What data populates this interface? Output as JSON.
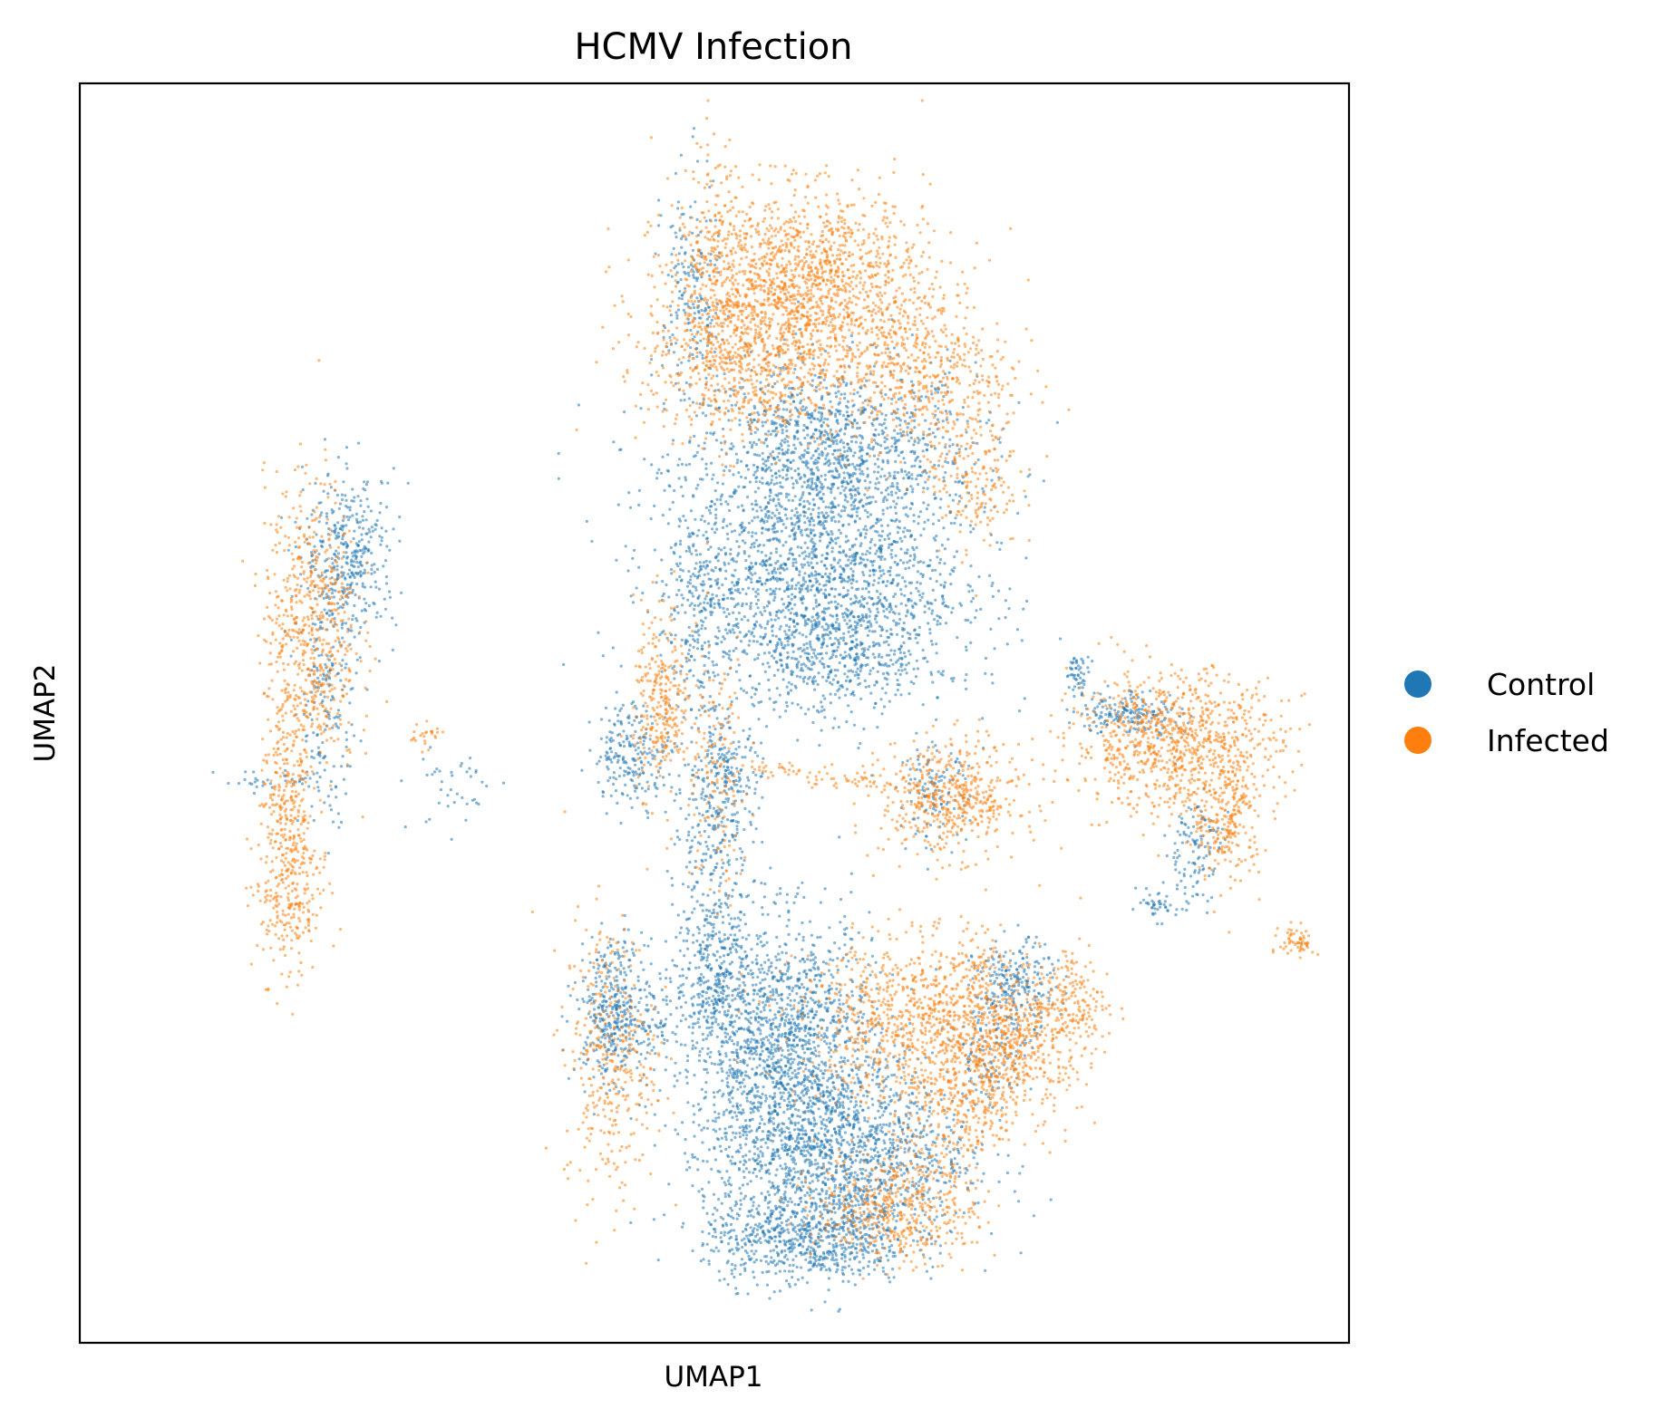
{
  "chart_data": {
    "type": "scatter",
    "title": "HCMV Infection",
    "xlabel": "UMAP1",
    "ylabel": "UMAP2",
    "xlim": [
      -1,
      21
    ],
    "ylim": [
      -1,
      21
    ],
    "grid": false,
    "ticks_shown": false,
    "legend_placement": "right",
    "series": [
      {
        "name": "Control",
        "color": "#1f77b4",
        "clusters": [
          {
            "x": 12.0,
            "y": 14.4,
            "sx": 1.25,
            "sy": 0.85,
            "n": 1400
          },
          {
            "x": 11.7,
            "y": 12.2,
            "sx": 1.3,
            "sy": 0.9,
            "n": 1500
          },
          {
            "x": 12.1,
            "y": 10.9,
            "sx": 1.0,
            "sy": 0.5,
            "n": 400
          },
          {
            "x": 9.6,
            "y": 17.2,
            "sx": 0.25,
            "sy": 1.1,
            "n": 200
          },
          {
            "x": 9.8,
            "y": 11.7,
            "sx": 0.22,
            "sy": 0.9,
            "n": 150
          },
          {
            "x": 8.6,
            "y": 9.3,
            "sx": 0.35,
            "sy": 0.45,
            "n": 220
          },
          {
            "x": 10.0,
            "y": 8.0,
            "sx": 0.35,
            "sy": 0.9,
            "n": 250
          },
          {
            "x": 10.2,
            "y": 9.0,
            "sx": 0.3,
            "sy": 0.4,
            "n": 120
          },
          {
            "x": 10.0,
            "y": 5.4,
            "sx": 0.35,
            "sy": 0.8,
            "n": 350
          },
          {
            "x": 11.2,
            "y": 4.2,
            "sx": 0.8,
            "sy": 1.1,
            "n": 1500
          },
          {
            "x": 12.2,
            "y": 2.3,
            "sx": 1.1,
            "sy": 0.8,
            "n": 1400
          },
          {
            "x": 11.6,
            "y": 0.8,
            "sx": 0.9,
            "sy": 0.4,
            "n": 700
          },
          {
            "x": 8.2,
            "y": 4.8,
            "sx": 0.3,
            "sy": 0.6,
            "n": 320
          },
          {
            "x": 8.7,
            "y": 4.6,
            "sx": 0.35,
            "sy": 0.6,
            "n": 120
          },
          {
            "x": 15.2,
            "y": 5.2,
            "sx": 0.35,
            "sy": 0.4,
            "n": 250
          },
          {
            "x": 14.8,
            "y": 4.0,
            "sx": 0.3,
            "sy": 0.4,
            "n": 100
          },
          {
            "x": 16.3,
            "y": 10.7,
            "sx": 0.1,
            "sy": 0.15,
            "n": 50
          },
          {
            "x": 17.2,
            "y": 10.0,
            "sx": 0.45,
            "sy": 0.2,
            "n": 180
          },
          {
            "x": 18.3,
            "y": 7.6,
            "sx": 0.25,
            "sy": 0.5,
            "n": 120
          },
          {
            "x": 17.6,
            "y": 6.6,
            "sx": 0.2,
            "sy": 0.12,
            "n": 40
          },
          {
            "x": 13.8,
            "y": 8.6,
            "sx": 0.3,
            "sy": 0.4,
            "n": 120
          },
          {
            "x": 3.7,
            "y": 12.8,
            "sx": 0.4,
            "sy": 0.7,
            "n": 350
          },
          {
            "x": 3.3,
            "y": 10.5,
            "sx": 0.25,
            "sy": 1.2,
            "n": 200
          },
          {
            "x": 2.5,
            "y": 8.8,
            "sx": 0.55,
            "sy": 0.1,
            "n": 40
          },
          {
            "x": 5.5,
            "y": 8.7,
            "sx": 0.4,
            "sy": 0.4,
            "n": 40
          }
        ]
      },
      {
        "name": "Infected",
        "color": "#ff7f0e",
        "clusters": [
          {
            "x": 11.5,
            "y": 17.5,
            "sx": 1.1,
            "sy": 0.8,
            "n": 1500
          },
          {
            "x": 10.6,
            "y": 16.0,
            "sx": 0.9,
            "sy": 0.7,
            "n": 600
          },
          {
            "x": 13.5,
            "y": 16.0,
            "sx": 0.8,
            "sy": 0.7,
            "n": 500
          },
          {
            "x": 14.5,
            "y": 14.2,
            "sx": 0.4,
            "sy": 0.7,
            "n": 200
          },
          {
            "x": 10.0,
            "y": 17.8,
            "sx": 0.25,
            "sy": 1.2,
            "n": 200
          },
          {
            "x": 9.1,
            "y": 10.3,
            "sx": 0.25,
            "sy": 0.8,
            "n": 200
          },
          {
            "x": 10.0,
            "y": 9.0,
            "sx": 0.3,
            "sy": 1.2,
            "n": 150
          },
          {
            "x": 14.1,
            "y": 8.5,
            "sx": 0.6,
            "sy": 0.5,
            "n": 500
          },
          {
            "x": 18.0,
            "y": 9.5,
            "sx": 0.9,
            "sy": 0.6,
            "n": 900
          },
          {
            "x": 18.9,
            "y": 8.2,
            "sx": 0.3,
            "sy": 0.6,
            "n": 250
          },
          {
            "x": 13.5,
            "y": 4.6,
            "sx": 1.0,
            "sy": 0.7,
            "n": 900
          },
          {
            "x": 15.2,
            "y": 4.2,
            "sx": 0.6,
            "sy": 0.6,
            "n": 500
          },
          {
            "x": 13.2,
            "y": 1.4,
            "sx": 0.7,
            "sy": 0.5,
            "n": 500
          },
          {
            "x": 14.3,
            "y": 3.0,
            "sx": 0.5,
            "sy": 0.5,
            "n": 250
          },
          {
            "x": 14.5,
            "y": 5.6,
            "sx": 0.25,
            "sy": 0.4,
            "n": 60
          },
          {
            "x": 16.2,
            "y": 5.0,
            "sx": 0.3,
            "sy": 0.5,
            "n": 150
          },
          {
            "x": 8.2,
            "y": 4.0,
            "sx": 0.4,
            "sy": 1.2,
            "n": 350
          },
          {
            "x": 3.0,
            "y": 11.5,
            "sx": 0.4,
            "sy": 1.3,
            "n": 600
          },
          {
            "x": 2.6,
            "y": 8.0,
            "sx": 0.25,
            "sy": 1.2,
            "n": 400
          },
          {
            "x": 2.7,
            "y": 6.6,
            "sx": 0.3,
            "sy": 0.5,
            "n": 100
          },
          {
            "x": 9.1,
            "y": 9.8,
            "sx": 0.2,
            "sy": 0.4,
            "n": 80
          },
          {
            "x": 20.1,
            "y": 6.0,
            "sx": 0.15,
            "sy": 0.15,
            "n": 60
          },
          {
            "x": 5.0,
            "y": 9.6,
            "sx": 0.15,
            "sy": 0.1,
            "n": 25
          },
          {
            "x": 12.5,
            "y": 8.8,
            "sx": 0.4,
            "sy": 0.1,
            "n": 40
          },
          {
            "x": 11.1,
            "y": 9.0,
            "sx": 0.5,
            "sy": 0.1,
            "n": 40
          }
        ]
      }
    ]
  }
}
